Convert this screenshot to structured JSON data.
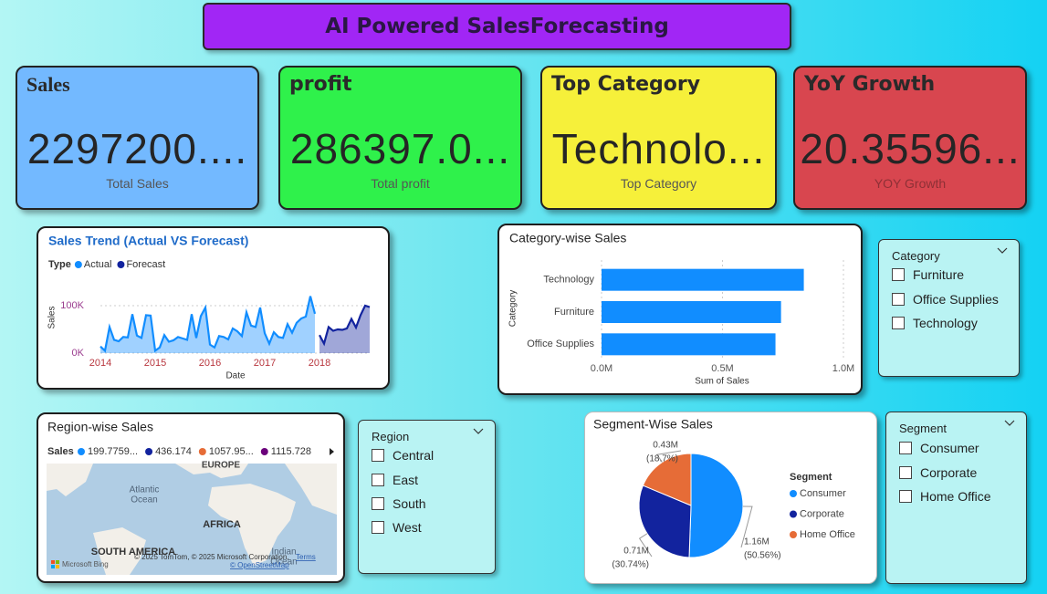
{
  "header": {
    "title": "AI Powered SalesForecasting"
  },
  "cards": [
    {
      "title": "Sales",
      "value": "2297200....",
      "caption": "Total Sales"
    },
    {
      "title": "profit",
      "value": "286397.0...",
      "caption": "Total profit"
    },
    {
      "title": "Top Category",
      "value": "Technolo...",
      "caption": "Top Category"
    },
    {
      "title": "YoY Growth",
      "value": "20.35596...",
      "caption": "YOY Growth"
    }
  ],
  "chart_data": [
    {
      "type": "line",
      "title": "Sales Trend (Actual VS Forecast)",
      "legend_title": "Type",
      "x_label": "Date",
      "y_label": "Sales",
      "categories": [
        "2014",
        null,
        null,
        null,
        null,
        null,
        null,
        null,
        null,
        null,
        null,
        null,
        "2015",
        null,
        null,
        null,
        null,
        null,
        null,
        null,
        null,
        null,
        null,
        null,
        "2016",
        null,
        null,
        null,
        null,
        null,
        null,
        null,
        null,
        null,
        null,
        null,
        "2017",
        null,
        null,
        null,
        null,
        null,
        null,
        null,
        null,
        null,
        null,
        null,
        "2018",
        null,
        null,
        null,
        null,
        null,
        null,
        null,
        null,
        null,
        null,
        null
      ],
      "series": [
        {
          "name": "Actual",
          "color": "#118dff",
          "values": [
            14000,
            5000,
            55000,
            28000,
            25000,
            34000,
            33000,
            82000,
            37000,
            32000,
            80000,
            79000,
            5000,
            12000,
            38000,
            24000,
            27000,
            34000,
            31000,
            28000,
            82000,
            32000,
            78000,
            96000,
            18000,
            12000,
            36000,
            34000,
            29000,
            52000,
            46000,
            36000,
            86000,
            58000,
            55000,
            96000,
            42000,
            20000,
            44000,
            34000,
            32000,
            61000,
            43000,
            64000,
            73000,
            77000,
            120000,
            83000,
            null,
            null,
            null,
            null,
            null,
            null,
            null,
            null,
            null,
            null,
            null,
            null
          ]
        },
        {
          "name": "Forecast",
          "color": "#12239e",
          "values": [
            null,
            null,
            null,
            null,
            null,
            null,
            null,
            null,
            null,
            null,
            null,
            null,
            null,
            null,
            null,
            null,
            null,
            null,
            null,
            null,
            null,
            null,
            null,
            null,
            null,
            null,
            null,
            null,
            null,
            null,
            null,
            null,
            null,
            null,
            null,
            null,
            null,
            null,
            null,
            null,
            null,
            null,
            null,
            null,
            null,
            null,
            null,
            null,
            38000,
            20000,
            55000,
            47000,
            50000,
            49000,
            52000,
            72000,
            54000,
            80000,
            100000,
            97000
          ]
        }
      ],
      "ylim": [
        0,
        130000
      ],
      "yticks": [
        {
          "value": 0,
          "label": "0K"
        },
        {
          "value": 100000,
          "label": "100K"
        }
      ],
      "grid": true
    },
    {
      "type": "bar",
      "orientation": "horizontal",
      "title": "Category-wise Sales",
      "x_label": "Sum of Sales",
      "y_label": "Category",
      "categories": [
        "Technology",
        "Furniture",
        "Office Supplies"
      ],
      "values": [
        836154,
        741999,
        719047
      ],
      "color": "#118dff",
      "xlim": [
        0,
        1000000
      ],
      "xticks": [
        {
          "value": 0,
          "label": "0.0M"
        },
        {
          "value": 500000,
          "label": "0.5M"
        },
        {
          "value": 1000000,
          "label": "1.0M"
        }
      ],
      "grid": true
    },
    {
      "type": "pie",
      "title": "Segment-Wise Sales",
      "legend_title": "Segment",
      "categories": [
        "Consumer",
        "Corporate",
        "Home Office"
      ],
      "values": [
        1161401,
        706146,
        429653
      ],
      "value_labels": [
        "1.16M",
        "0.71M",
        "0.43M"
      ],
      "percent_labels": [
        "(50.56%)",
        "(30.74%)",
        "(18.7%)"
      ],
      "colors": [
        "#118dff",
        "#12239e",
        "#e66c37"
      ]
    }
  ],
  "region_map": {
    "title": "Region-wise Sales",
    "legend_title": "Sales",
    "legend": [
      {
        "label": "199.7759...",
        "color": "#118dff"
      },
      {
        "label": "436.174",
        "color": "#12239e"
      },
      {
        "label": "1057.95...",
        "color": "#e66c37"
      },
      {
        "label": "1115.728",
        "color": "#6b007b"
      }
    ],
    "labels": [
      "EUROPE",
      "Atlantic",
      "Ocean",
      "AFRICA",
      "SOUTH AMERICA",
      "Indian",
      "Ocean"
    ],
    "attribution": "© 2025 TomTom, © 2025 Microsoft Corporation,",
    "terms": "Terms",
    "osm": "© OpenStreetMap",
    "logo": "Microsoft Bing"
  },
  "slicers": [
    {
      "title": "Category",
      "items": [
        "Furniture",
        "Office Supplies",
        "Technology"
      ]
    },
    {
      "title": "Region",
      "items": [
        "Central",
        "East",
        "South",
        "West"
      ]
    },
    {
      "title": "Segment",
      "items": [
        "Consumer",
        "Corporate",
        "Home Office"
      ]
    }
  ]
}
